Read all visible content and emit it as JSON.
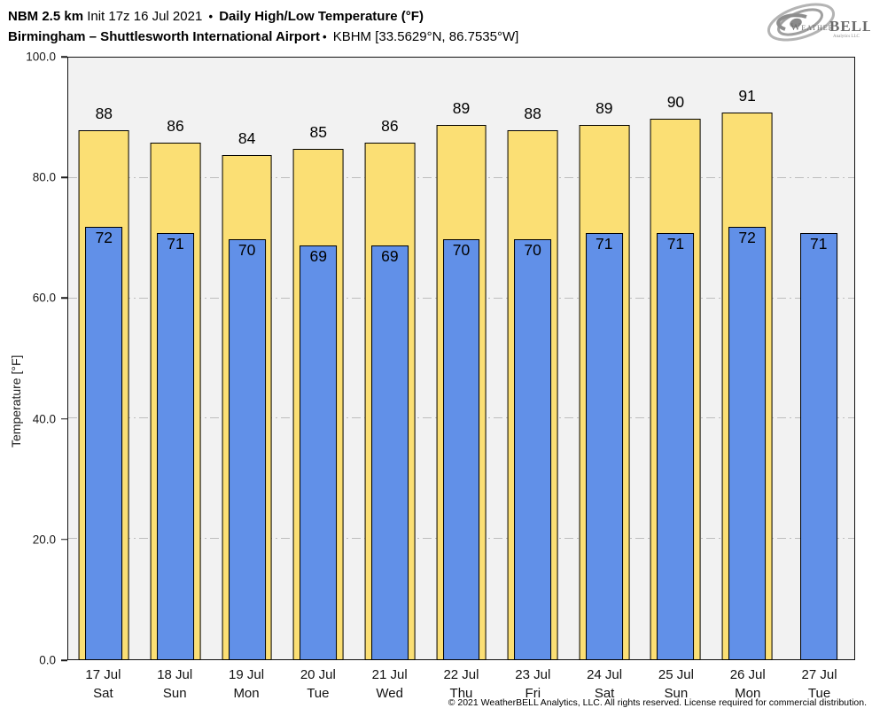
{
  "header": {
    "model": "NBM 2.5 km",
    "init": " Init 17z 16 Jul 2021 ",
    "bullet": "•",
    "product": " Daily High/Low Temperature (°F)",
    "station": "Birmingham – Shuttlesworth International Airport",
    "bullet2": "•",
    "station_info": " KBHM [33.5629°N, 86.7535°W]"
  },
  "logo": {
    "name": "weatherbell-logo",
    "text_weather": "Weather",
    "text_bell": "BELL",
    "subtext": "Analytics LLC"
  },
  "chart_data": {
    "type": "bar",
    "title": "Daily High/Low Temperature (°F)",
    "xlabel": "",
    "ylabel": "Temperature [°F]",
    "ylim": [
      0,
      100
    ],
    "yticks": [
      0,
      20,
      40,
      60,
      80,
      100
    ],
    "ytick_labels": [
      "0.0",
      "20.0",
      "40.0",
      "60.0",
      "80.0",
      "100.0"
    ],
    "grid_values": [
      20,
      40,
      60,
      80
    ],
    "grid_style": "gray dash-dot horizontal",
    "legend": "none",
    "plot_bg": "#f2f2f2",
    "categories": [
      {
        "date": "17 Jul",
        "day": "Sat"
      },
      {
        "date": "18 Jul",
        "day": "Sun"
      },
      {
        "date": "19 Jul",
        "day": "Mon"
      },
      {
        "date": "20 Jul",
        "day": "Tue"
      },
      {
        "date": "21 Jul",
        "day": "Wed"
      },
      {
        "date": "22 Jul",
        "day": "Thu"
      },
      {
        "date": "23 Jul",
        "day": "Fri"
      },
      {
        "date": "24 Jul",
        "day": "Sat"
      },
      {
        "date": "25 Jul",
        "day": "Sun"
      },
      {
        "date": "26 Jul",
        "day": "Mon"
      },
      {
        "date": "27 Jul",
        "day": "Tue"
      }
    ],
    "series": [
      {
        "name": "High",
        "color": "#fbdf74",
        "values": [
          88,
          86,
          84,
          85,
          86,
          89,
          88,
          89,
          90,
          91,
          null
        ]
      },
      {
        "name": "Low",
        "color": "#6190e8",
        "values": [
          72,
          71,
          70,
          69,
          69,
          70,
          70,
          71,
          71,
          72,
          71
        ]
      }
    ]
  },
  "footer": {
    "copyright": "© 2021 WeatherBELL Analytics, LLC. All rights reserved. License required for commercial distribution."
  }
}
